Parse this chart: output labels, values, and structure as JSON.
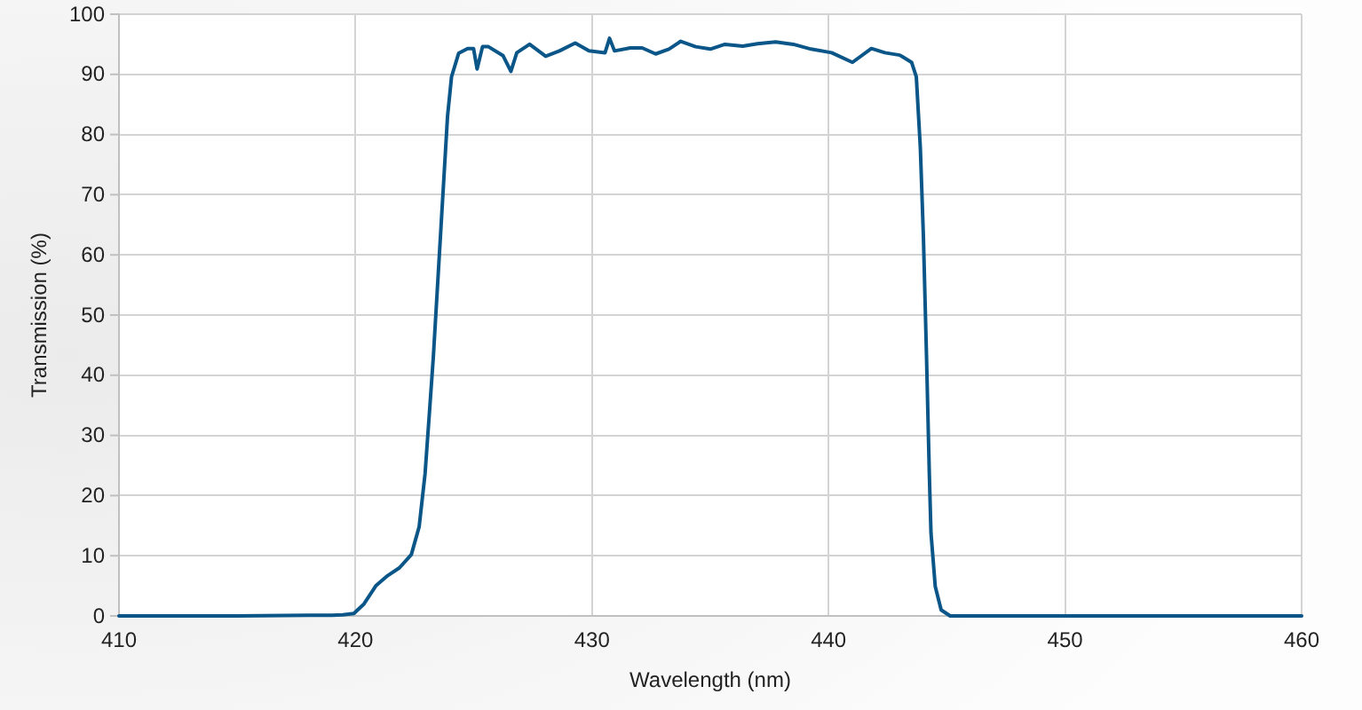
{
  "chart_data": {
    "type": "line",
    "xlabel": "Wavelength (nm)",
    "ylabel": "Transmission (%)",
    "xlim": [
      410,
      460
    ],
    "xticks": [
      410,
      420,
      430,
      440,
      450,
      460
    ],
    "ylim": [
      0,
      100
    ],
    "yticks": [
      0,
      10,
      20,
      30,
      40,
      50,
      60,
      70,
      80,
      90,
      100
    ],
    "grid": true,
    "color": "#0b5688",
    "x": [
      410,
      415,
      418,
      419,
      419.46,
      419.93,
      420.36,
      420.86,
      421.36,
      421.86,
      422.36,
      422.69,
      422.94,
      423.12,
      423.29,
      423.44,
      423.59,
      423.74,
      423.89,
      424.06,
      424.36,
      424.74,
      424.99,
      425.14,
      425.37,
      425.62,
      426.24,
      426.57,
      426.82,
      427.36,
      428.04,
      428.62,
      429.29,
      429.87,
      430.55,
      430.74,
      430.95,
      431.62,
      432.12,
      432.69,
      433.25,
      433.75,
      434.38,
      435.0,
      435.62,
      436.37,
      437.0,
      437.76,
      438.51,
      439.26,
      440.13,
      441.01,
      441.81,
      442.38,
      443.01,
      443.51,
      443.71,
      443.88,
      444.01,
      444.14,
      444.26,
      444.33,
      444.51,
      444.76,
      445.14,
      450,
      460
    ],
    "values": [
      0,
      0,
      0.1,
      0.1,
      0.2,
      0.4,
      2,
      5,
      6.7,
      8,
      10.2,
      14.8,
      23.6,
      33.5,
      43,
      53,
      63,
      73,
      83,
      89.6,
      93.5,
      94.3,
      94.3,
      90.9,
      94.6,
      94.6,
      93.1,
      90.5,
      93.6,
      95.0,
      93.0,
      93.9,
      95.2,
      93.9,
      93.6,
      96.0,
      93.9,
      94.4,
      94.4,
      93.4,
      94.2,
      95.5,
      94.6,
      94.2,
      95.0,
      94.7,
      95.1,
      95.4,
      95.0,
      94.2,
      93.6,
      92.0,
      94.3,
      93.6,
      93.2,
      92.0,
      89.6,
      77.8,
      63,
      43.3,
      23.6,
      13.8,
      4.9,
      1.0,
      0,
      0,
      0
    ]
  }
}
